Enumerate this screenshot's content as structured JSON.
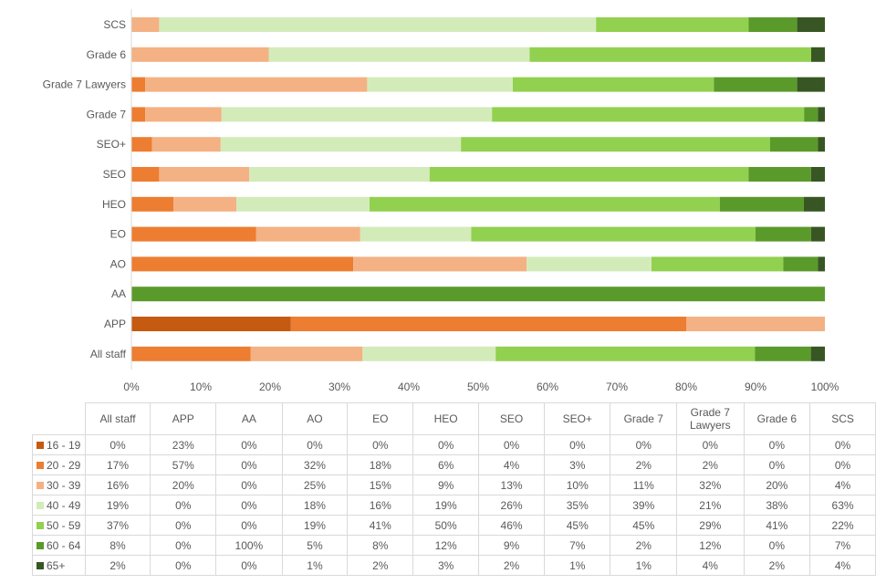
{
  "chart_data": {
    "type": "bar",
    "orientation": "horizontal-stacked-100",
    "categories": [
      "All staff",
      "APP",
      "AA",
      "AO",
      "EO",
      "HEO",
      "SEO",
      "SEO+",
      "Grade 7",
      "Grade 7 Lawyers",
      "Grade 6",
      "SCS"
    ],
    "series": [
      {
        "name": "16 - 19",
        "color": "#C55A11",
        "values": [
          0,
          23,
          0,
          0,
          0,
          0,
          0,
          0,
          0,
          0,
          0,
          0
        ]
      },
      {
        "name": "20 - 29",
        "color": "#ED7D31",
        "values": [
          17,
          57,
          0,
          32,
          18,
          6,
          4,
          3,
          2,
          2,
          0,
          0
        ]
      },
      {
        "name": "30 - 39",
        "color": "#F4B183",
        "values": [
          16,
          20,
          0,
          25,
          15,
          9,
          13,
          10,
          11,
          32,
          20,
          4
        ]
      },
      {
        "name": "40 - 49",
        "color": "#D3EBB9",
        "values": [
          19,
          0,
          0,
          18,
          16,
          19,
          26,
          35,
          39,
          21,
          38,
          63
        ]
      },
      {
        "name": "50 - 59",
        "color": "#92D050",
        "values": [
          37,
          0,
          0,
          19,
          41,
          50,
          46,
          45,
          45,
          29,
          41,
          22
        ]
      },
      {
        "name": "60 - 64",
        "color": "#5A9A2A",
        "values": [
          8,
          0,
          100,
          5,
          8,
          12,
          9,
          7,
          2,
          12,
          0,
          7
        ]
      },
      {
        "name": "65+",
        "color": "#375623",
        "values": [
          2,
          0,
          0,
          1,
          2,
          3,
          2,
          1,
          1,
          4,
          2,
          4
        ]
      }
    ],
    "xticks": [
      "0%",
      "10%",
      "20%",
      "30%",
      "40%",
      "50%",
      "60%",
      "70%",
      "80%",
      "90%",
      "100%"
    ],
    "xlim": [
      0,
      100
    ],
    "grid": false,
    "legend": "data-table-below",
    "table_headers": [
      "All staff",
      "APP",
      "AA",
      "AO",
      "EO",
      "HEO",
      "SEO",
      "SEO+",
      "Grade 7",
      "Grade 7 Lawyers",
      "Grade 6",
      "SCS"
    ]
  }
}
